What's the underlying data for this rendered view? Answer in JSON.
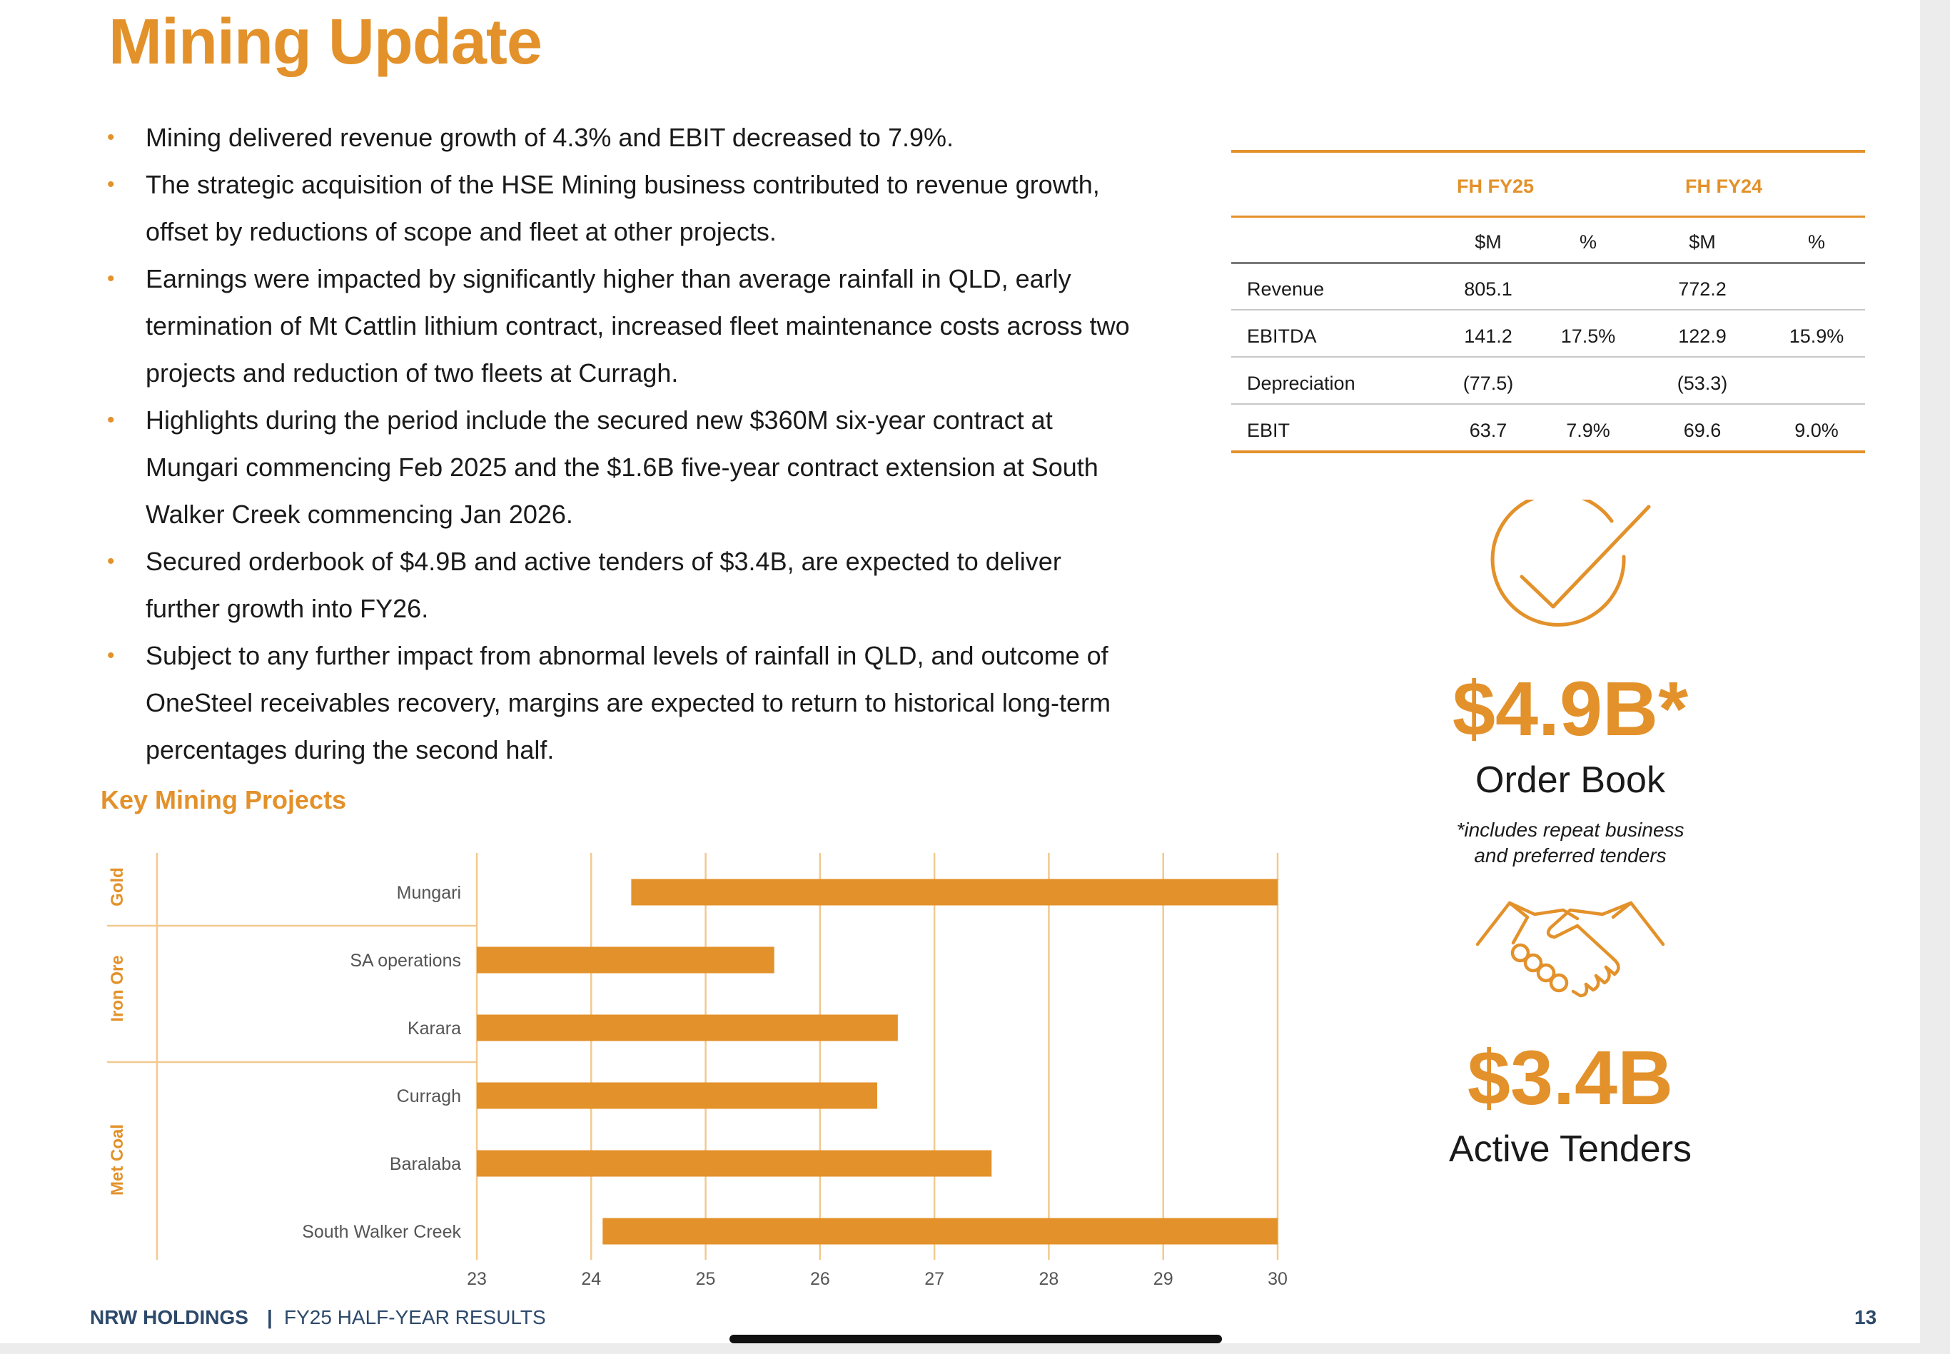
{
  "title": "Mining Update",
  "bullets": [
    [
      "Mining delivered revenue growth of 4.3% and EBIT decreased to 7.9%."
    ],
    [
      "The strategic acquisition of the HSE Mining business contributed to revenue growth,",
      "offset by reductions of scope and fleet at other projects."
    ],
    [
      "Earnings were impacted by significantly higher than average rainfall in QLD, early",
      "termination of Mt Cattlin lithium contract, increased fleet maintenance costs across two",
      "projects and reduction of two fleets at Curragh."
    ],
    [
      "Highlights during the period include the secured new $360M six-year contract at",
      "Mungari commencing Feb 2025 and the $1.6B five-year contract extension at South",
      "Walker Creek commencing Jan 2026."
    ],
    [
      "Secured orderbook of $4.9B and active tenders of $3.4B, are expected to deliver",
      "further growth into FY26."
    ],
    [
      "Subject to any further impact from abnormal levels of rainfall in QLD, and outcome of",
      "OneSteel receivables recovery, margins are expected to return to historical long-term",
      "percentages during the second half."
    ]
  ],
  "financials": {
    "period_headers": [
      "FH FY25",
      "FH FY24"
    ],
    "sub_headers": [
      "$M",
      "%",
      "$M",
      "%"
    ],
    "rows": [
      {
        "label": "Revenue",
        "values": [
          "805.1",
          "",
          "772.2",
          ""
        ]
      },
      {
        "label": "EBITDA",
        "values": [
          "141.2",
          "17.5%",
          "122.9",
          "15.9%"
        ]
      },
      {
        "label": "Depreciation",
        "values": [
          "(77.5)",
          "",
          "(53.3)",
          ""
        ]
      },
      {
        "label": "EBIT",
        "values": [
          "63.7",
          "7.9%",
          "69.6",
          "9.0%"
        ]
      }
    ]
  },
  "order_book": {
    "value": "$4.9B*",
    "label": "Order Book",
    "note_lines": [
      "*includes repeat business",
      "and preferred tenders"
    ]
  },
  "active_tenders": {
    "value": "$3.4B",
    "label": "Active Tenders"
  },
  "projects_title": "Key Mining Projects",
  "chart_data": {
    "type": "bar",
    "orientation": "horizontal-gantt",
    "x_ticks": [
      23,
      24,
      25,
      26,
      27,
      28,
      29,
      30
    ],
    "xlim": [
      23,
      30
    ],
    "groups": [
      {
        "name": "Gold",
        "projects": [
          "Mungari"
        ]
      },
      {
        "name": "Iron Ore",
        "projects": [
          "SA operations",
          "Karara"
        ]
      },
      {
        "name": "Met Coal",
        "projects": [
          "Curragh",
          "Baralaba",
          "South Walker Creek"
        ]
      }
    ],
    "bars": [
      {
        "project": "Mungari",
        "start": 24.35,
        "end": 30.0
      },
      {
        "project": "SA operations",
        "start": 23.0,
        "end": 25.6
      },
      {
        "project": "Karara",
        "start": 23.0,
        "end": 26.68
      },
      {
        "project": "Curragh",
        "start": 23.0,
        "end": 26.5
      },
      {
        "project": "Baralaba",
        "start": 23.0,
        "end": 27.5
      },
      {
        "project": "South Walker Creek",
        "start": 24.1,
        "end": 30.0
      }
    ],
    "grid": true,
    "colors": {
      "bar": "#E3912A",
      "grid": "#F2C98F",
      "label": "#555555",
      "group": "#E3912A"
    }
  },
  "footer": {
    "company": "NRW HOLDINGS",
    "separator": "|",
    "doc": "FY25 HALF-YEAR RESULTS",
    "page": "13"
  },
  "colors": {
    "accent": "#E3912A",
    "footer": "#2e4a6b"
  },
  "icons": [
    "check-circle-icon",
    "handshake-icon"
  ]
}
